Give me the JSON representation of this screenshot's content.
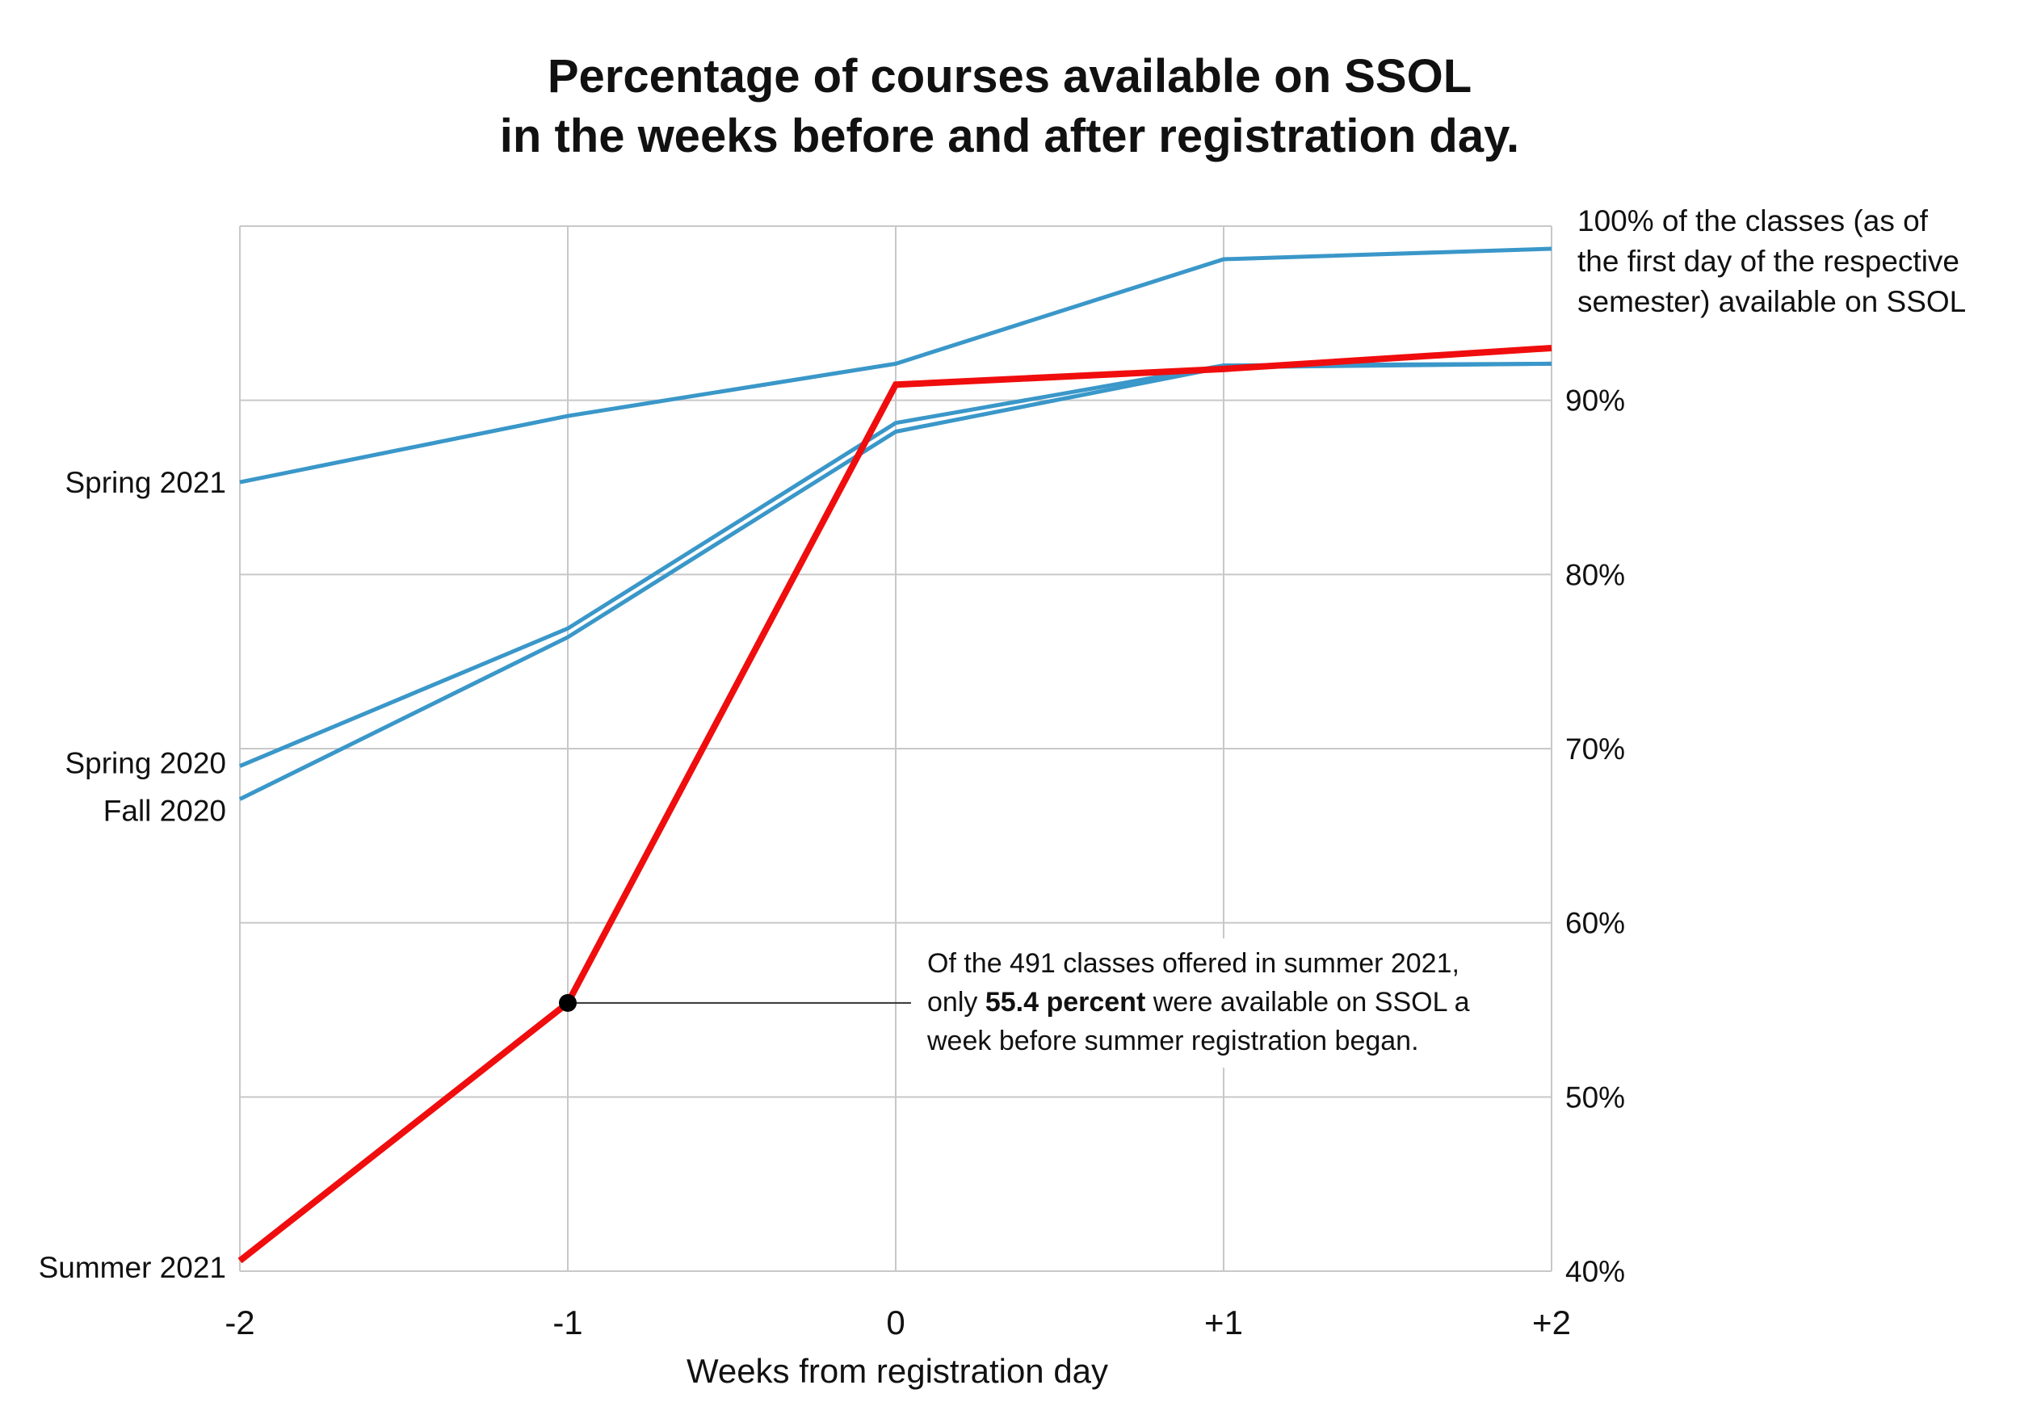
{
  "chart_data": {
    "type": "line",
    "title": [
      "Percentage of courses available on SSOL",
      "in the weeks before and after registration day."
    ],
    "xlabel": "Weeks from registration day",
    "ylabel": "",
    "x": [
      -2,
      -1,
      0,
      1,
      2
    ],
    "x_tick_labels": [
      "-2",
      "-1",
      "0",
      "+1",
      "+2"
    ],
    "ylim": [
      40,
      100
    ],
    "y_ticks": [
      40,
      50,
      60,
      70,
      80,
      90
    ],
    "y_tick_labels": [
      "40%",
      "50%",
      "60%",
      "70%",
      "80%",
      "90%"
    ],
    "top_note": [
      "100% of the classes (as of",
      "the first day of the respective",
      "semester) available on SSOL"
    ],
    "grid": true,
    "series": [
      {
        "name": "Spring 2021",
        "color": "#3a97c9",
        "values": [
          85.3,
          89.1,
          92.1,
          98.1,
          98.7
        ]
      },
      {
        "name": "Spring 2020",
        "color": "#3a97c9",
        "values": [
          69.0,
          76.9,
          88.7,
          92.0,
          92.1
        ]
      },
      {
        "name": "Fall 2020",
        "color": "#3a97c9",
        "values": [
          67.1,
          76.4,
          88.2,
          91.9,
          92.1
        ]
      },
      {
        "name": "Summer 2021",
        "color": "#f00d0d",
        "values": [
          40.6,
          55.4,
          90.9,
          91.8,
          93.0
        ]
      }
    ],
    "annotation": {
      "point": {
        "series": "Summer 2021",
        "x": -1,
        "y": 55.4
      },
      "lines": [
        [
          {
            "text": "Of the 491 classes offered in summer 2021,",
            "bold": false
          }
        ],
        [
          {
            "text": "only ",
            "bold": false
          },
          {
            "text": "55.4 percent",
            "bold": true
          },
          {
            "text": " were available on SSOL a",
            "bold": false
          }
        ],
        [
          {
            "text": "week before summer registration began.",
            "bold": false
          }
        ]
      ]
    }
  }
}
